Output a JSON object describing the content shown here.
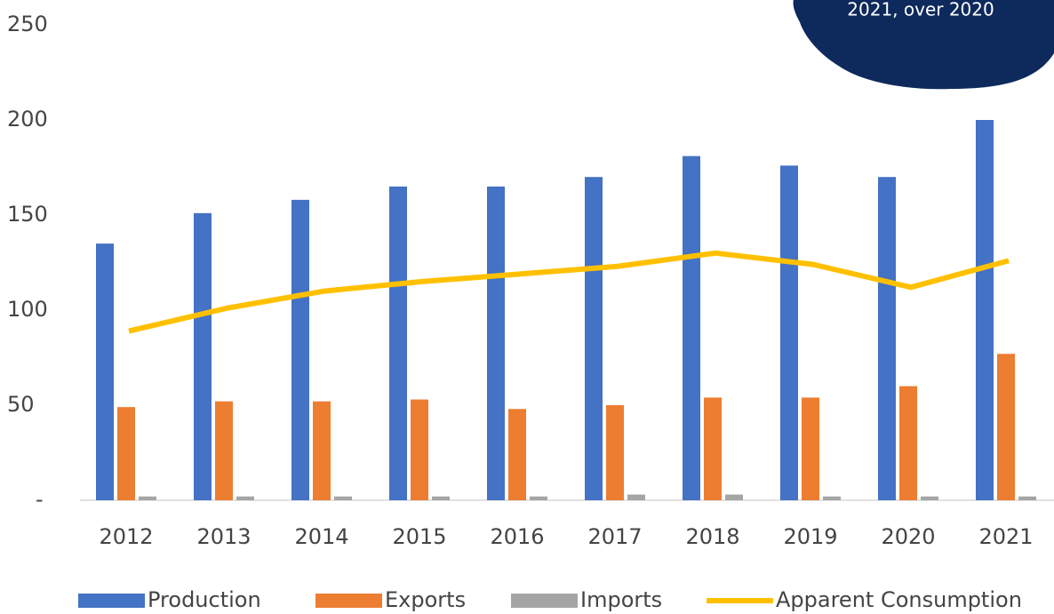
{
  "chart_data": {
    "type": "bar_line",
    "annotation": "2021, over 2020",
    "categories": [
      "2012",
      "2013",
      "2014",
      "2015",
      "2016",
      "2017",
      "2018",
      "2019",
      "2020",
      "2021"
    ],
    "series": [
      {
        "name": "Production",
        "type": "bar",
        "color": "#4472c4",
        "values": [
          135,
          151,
          158,
          165,
          165,
          170,
          181,
          176,
          170,
          200
        ]
      },
      {
        "name": "Exports",
        "type": "bar",
        "color": "#ed7d31",
        "values": [
          49,
          52,
          52,
          53,
          48,
          50,
          54,
          54,
          60,
          77
        ]
      },
      {
        "name": "Imports",
        "type": "bar",
        "color": "#a5a5a5",
        "values": [
          2,
          2,
          2,
          2,
          2,
          3,
          3,
          2,
          2,
          2
        ]
      },
      {
        "name": "Apparent Consumption",
        "type": "line",
        "color": "#ffc000",
        "values": [
          89,
          101,
          110,
          115,
          119,
          123,
          130,
          124,
          112,
          126
        ]
      }
    ],
    "ylim": [
      0,
      250
    ],
    "yticks": [
      {
        "value": 0,
        "label": "-"
      },
      50,
      100,
      150,
      200,
      250
    ],
    "grid": false
  }
}
